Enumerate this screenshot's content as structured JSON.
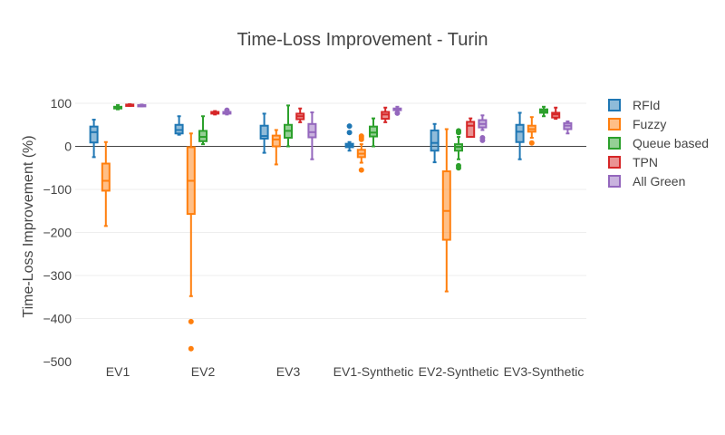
{
  "chart_data": {
    "type": "box",
    "title": "Time-Loss Improvement - Turin",
    "xlabel": "",
    "ylabel": "Time-Loss Improvement (%)",
    "ylim": [
      -500,
      100
    ],
    "yticks": [
      100,
      0,
      -100,
      -200,
      -300,
      -400,
      -500
    ],
    "grid": true,
    "legend_position": "right",
    "categories": [
      "EV1",
      "EV2",
      "EV3",
      "EV1-Synthetic",
      "EV2-Synthetic",
      "EV3-Synthetic"
    ],
    "series": [
      {
        "name": "RFId",
        "color": "#1f77b4",
        "boxes": [
          {
            "min": -25,
            "q1": 9,
            "median": 33,
            "q3": 46,
            "max": 62,
            "outliers": []
          },
          {
            "min": 27,
            "q1": 30,
            "median": 38,
            "q3": 50,
            "max": 70,
            "outliers": []
          },
          {
            "min": -15,
            "q1": 18,
            "median": 24,
            "q3": 48,
            "max": 76,
            "outliers": []
          },
          {
            "min": -10,
            "q1": -2,
            "median": 2,
            "q3": 6,
            "max": 10,
            "outliers": [
              47,
              32
            ]
          },
          {
            "min": -37,
            "q1": -10,
            "median": 8,
            "q3": 37,
            "max": 52,
            "outliers": []
          },
          {
            "min": -30,
            "q1": 10,
            "median": 34,
            "q3": 50,
            "max": 78,
            "outliers": []
          }
        ]
      },
      {
        "name": "Fuzzy",
        "color": "#ff7f0e",
        "boxes": [
          {
            "min": -185,
            "q1": -103,
            "median": -80,
            "q3": -40,
            "max": 10,
            "outliers": []
          },
          {
            "min": -348,
            "q1": -157,
            "median": -80,
            "q3": -2,
            "max": 30,
            "outliers": [
              -407,
              -470
            ]
          },
          {
            "min": -42,
            "q1": 0,
            "median": 16,
            "q3": 25,
            "max": 38,
            "outliers": []
          },
          {
            "min": -38,
            "q1": -25,
            "median": -17,
            "q3": -8,
            "max": 5,
            "outliers": [
              24,
              20,
              16,
              -55
            ]
          },
          {
            "min": -337,
            "q1": -217,
            "median": -150,
            "q3": -58,
            "max": 40,
            "outliers": []
          },
          {
            "min": 20,
            "q1": 34,
            "median": 40,
            "q3": 48,
            "max": 68,
            "outliers": [
              8
            ]
          }
        ]
      },
      {
        "name": "Queue based",
        "color": "#2ca02c",
        "boxes": [
          {
            "min": 86,
            "q1": 88,
            "median": 89,
            "q3": 92,
            "max": 96,
            "outliers": []
          },
          {
            "min": 5,
            "q1": 12,
            "median": 22,
            "q3": 36,
            "max": 70,
            "outliers": []
          },
          {
            "min": 0,
            "q1": 20,
            "median": 36,
            "q3": 50,
            "max": 95,
            "outliers": []
          },
          {
            "min": 0,
            "q1": 23,
            "median": 32,
            "q3": 46,
            "max": 65,
            "outliers": []
          },
          {
            "min": -30,
            "q1": -10,
            "median": -2,
            "q3": 5,
            "max": 22,
            "outliers": [
              36,
              32,
              -45,
              -50
            ]
          },
          {
            "min": 70,
            "q1": 78,
            "median": 82,
            "q3": 86,
            "max": 92,
            "outliers": []
          }
        ]
      },
      {
        "name": "TPN",
        "color": "#d62728",
        "boxes": [
          {
            "min": 94,
            "q1": 94,
            "median": 96,
            "q3": 97,
            "max": 98,
            "outliers": []
          },
          {
            "min": 74,
            "q1": 76,
            "median": 78,
            "q3": 80,
            "max": 82,
            "outliers": []
          },
          {
            "min": 56,
            "q1": 63,
            "median": 70,
            "q3": 76,
            "max": 88,
            "outliers": []
          },
          {
            "min": 56,
            "q1": 64,
            "median": 74,
            "q3": 80,
            "max": 90,
            "outliers": []
          },
          {
            "min": 22,
            "q1": 22,
            "median": 48,
            "q3": 57,
            "max": 65,
            "outliers": []
          },
          {
            "min": 64,
            "q1": 67,
            "median": 74,
            "q3": 78,
            "max": 90,
            "outliers": []
          }
        ]
      },
      {
        "name": "All Green",
        "color": "#9467bd",
        "boxes": [
          {
            "min": 93,
            "q1": 94,
            "median": 95,
            "q3": 96,
            "max": 97,
            "outliers": []
          },
          {
            "min": 74,
            "q1": 76,
            "median": 78,
            "q3": 80,
            "max": 82,
            "outliers": [
              84
            ]
          },
          {
            "min": -30,
            "q1": 21,
            "median": 33,
            "q3": 52,
            "max": 79,
            "outliers": []
          },
          {
            "min": 78,
            "q1": 84,
            "median": 86,
            "q3": 88,
            "max": 92,
            "outliers": [
              77
            ]
          },
          {
            "min": 38,
            "q1": 44,
            "median": 52,
            "q3": 61,
            "max": 72,
            "outliers": [
              20,
              14
            ]
          },
          {
            "min": 30,
            "q1": 40,
            "median": 48,
            "q3": 54,
            "max": 58,
            "outliers": []
          }
        ]
      }
    ]
  }
}
